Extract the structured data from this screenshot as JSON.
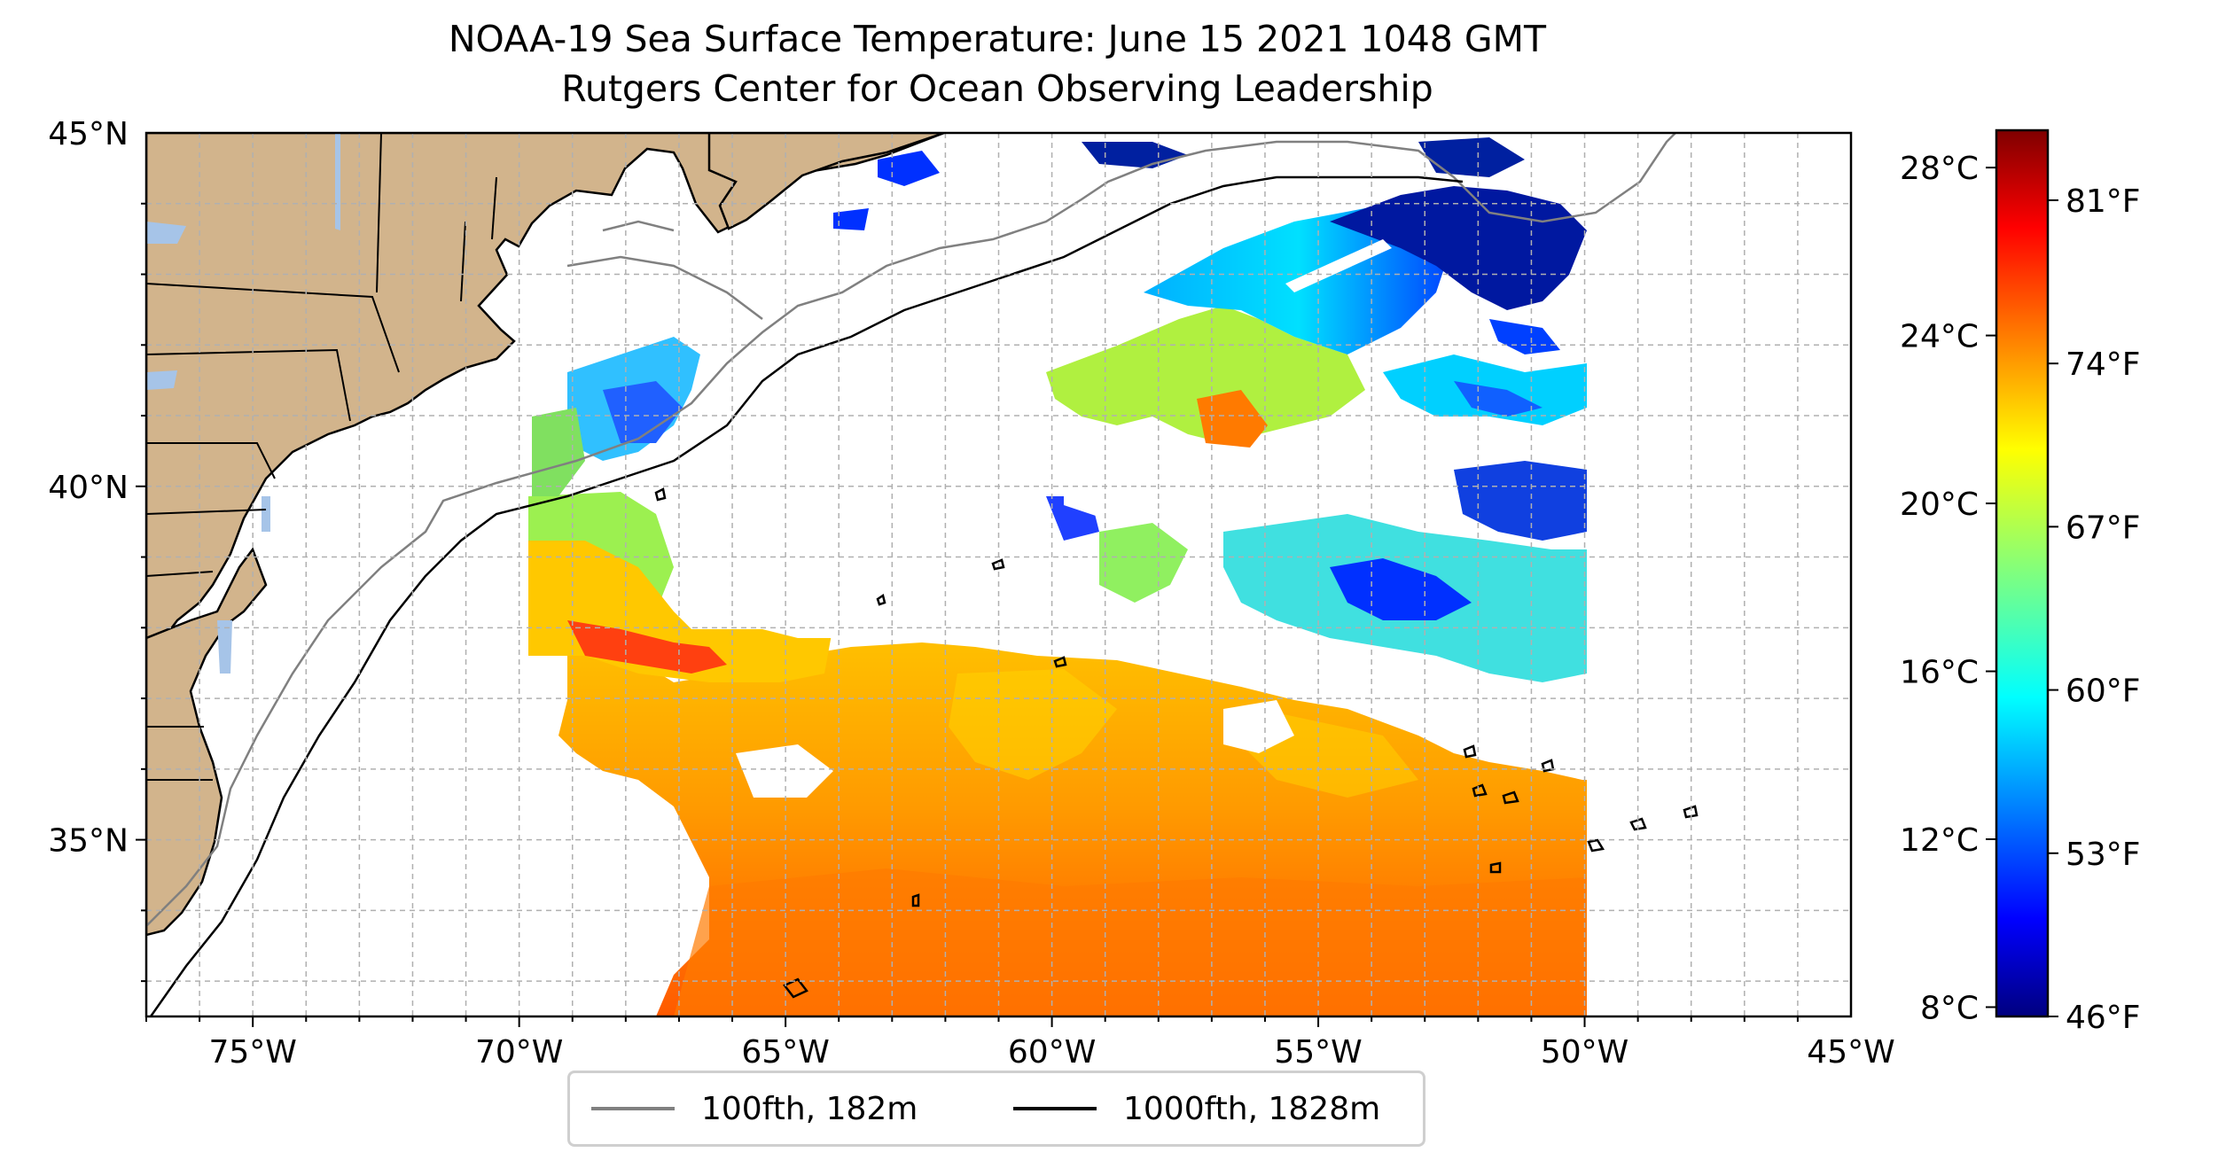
{
  "title": "NOAA-19 Sea Surface Temperature: June 15 2021 1048 GMT",
  "subtitle": "Rutgers Center for Ocean Observing Leadership",
  "map": {
    "lon_range": [
      -77,
      -45
    ],
    "lat_range": [
      32.5,
      45
    ],
    "lon_ticks": [
      "75°W",
      "70°W",
      "65°W",
      "60°W",
      "55°W",
      "50°W",
      "45°W"
    ],
    "lat_ticks": [
      "45°N",
      "40°N",
      "35°N"
    ],
    "grid": true,
    "grid_step_deg": 1,
    "land_color": "#d2b48c",
    "water_color": "#a6c4e8",
    "no_data_color": "#ffffff"
  },
  "colorbar": {
    "colormap": "jet",
    "celsius_ticks": [
      "28°C",
      "24°C",
      "20°C",
      "16°C",
      "12°C",
      "8°C"
    ],
    "fahrenheit_ticks": [
      "81°F",
      "74°F",
      "67°F",
      "60°F",
      "53°F",
      "46°F"
    ],
    "range_f": [
      46,
      84
    ]
  },
  "legend": {
    "items": [
      {
        "label": "100fth, 182m",
        "color": "#808080"
      },
      {
        "label": "1000fth, 1828m",
        "color": "#000000"
      }
    ]
  }
}
